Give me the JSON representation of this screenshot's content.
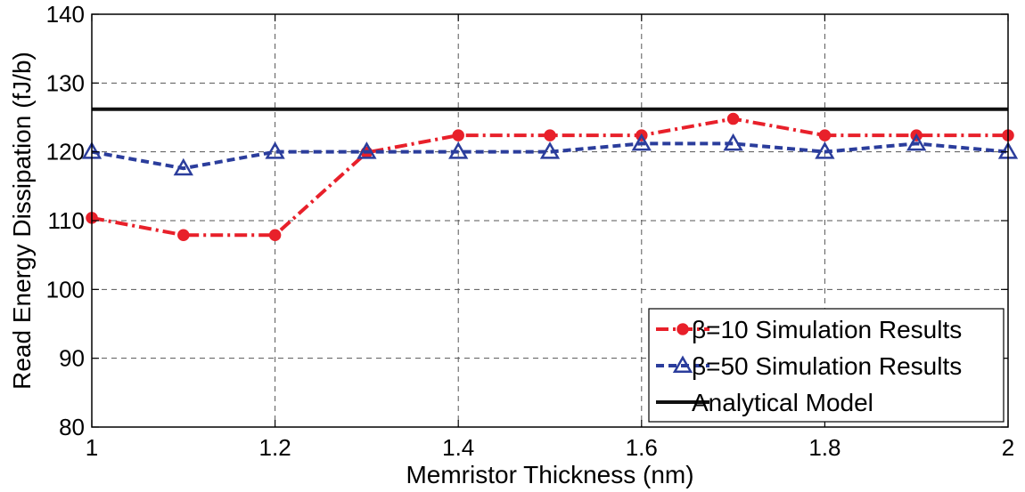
{
  "chart_data": {
    "type": "line",
    "title": "",
    "xlabel": "Memristor Thickness (nm)",
    "ylabel": "Read Energy Dissipation  (fJ/b)",
    "xlim": [
      1,
      2
    ],
    "ylim": [
      80,
      140
    ],
    "xticks": [
      "1",
      "1.2",
      "1.4",
      "1.6",
      "1.8",
      "2"
    ],
    "yticks": [
      "80",
      "90",
      "100",
      "110",
      "120",
      "130",
      "140"
    ],
    "grid": true,
    "legend_position": "bottom-right",
    "series": [
      {
        "name": "β=10 Simulation Results",
        "color": "#e8202a",
        "marker": "circle",
        "line_style": "dash-dot",
        "x": [
          1.0,
          1.1,
          1.2,
          1.3,
          1.4,
          1.5,
          1.6,
          1.7,
          1.8,
          1.9,
          2.0
        ],
        "y": [
          110.4,
          107.9,
          107.9,
          119.9,
          122.4,
          122.4,
          122.4,
          124.8,
          122.4,
          122.4,
          122.4
        ]
      },
      {
        "name": "β=50 Simulation Results",
        "color": "#2b3d9c",
        "marker": "triangle",
        "line_style": "dashed",
        "x": [
          1.0,
          1.1,
          1.2,
          1.3,
          1.4,
          1.5,
          1.6,
          1.7,
          1.8,
          1.9,
          2.0
        ],
        "y": [
          120.0,
          117.6,
          120.0,
          120.0,
          120.0,
          120.0,
          121.2,
          121.2,
          120.0,
          121.2,
          120.0
        ]
      },
      {
        "name": "Analytical Model",
        "color": "#111111",
        "marker": "none",
        "line_style": "solid",
        "x": [
          1.0,
          2.0
        ],
        "y": [
          126.2,
          126.2
        ]
      }
    ]
  }
}
